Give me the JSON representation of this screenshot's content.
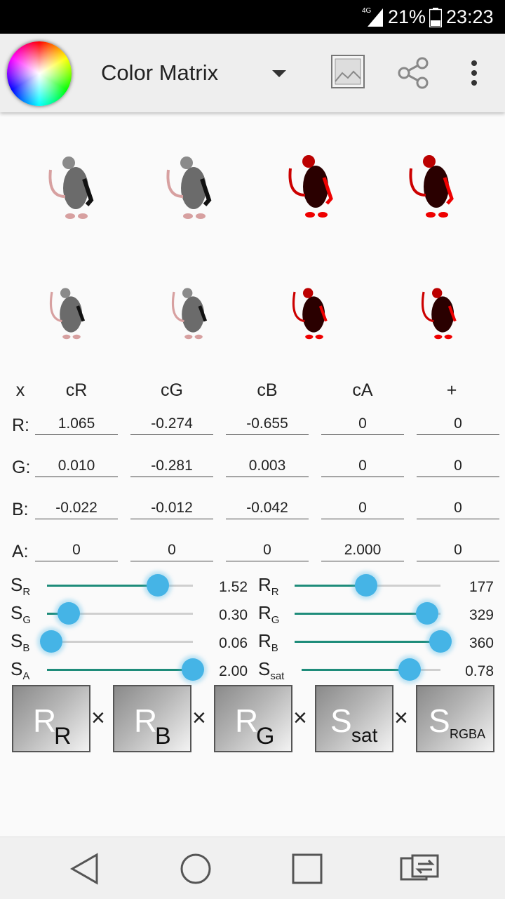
{
  "status_bar": {
    "network": "4G",
    "battery": "21%",
    "time": "23:23"
  },
  "app_bar": {
    "title": "Color Matrix"
  },
  "thumbnails": [
    "rat-gray",
    "rat-gray",
    "rat-red",
    "rat-red",
    "rat-gray",
    "rat-gray",
    "rat-red",
    "rat-red"
  ],
  "matrix": {
    "headers": [
      "x",
      "cR",
      "cG",
      "cB",
      "cA",
      "+"
    ],
    "rows": [
      {
        "label": "R:",
        "values": [
          "1.065",
          "-0.274",
          "-0.655",
          "0",
          "0"
        ]
      },
      {
        "label": "G:",
        "values": [
          "0.010",
          "-0.281",
          "0.003",
          "0",
          "0"
        ]
      },
      {
        "label": "B:",
        "values": [
          "-0.022",
          "-0.012",
          "-0.042",
          "0",
          "0"
        ]
      },
      {
        "label": "A:",
        "values": [
          "0",
          "0",
          "0",
          "2.000",
          "0"
        ]
      }
    ]
  },
  "sliders": {
    "left": [
      {
        "label": "S",
        "sub": "R",
        "value": "1.52",
        "level": 0.76
      },
      {
        "label": "S",
        "sub": "G",
        "value": "0.30",
        "level": 0.15
      },
      {
        "label": "S",
        "sub": "B",
        "value": "0.06",
        "level": 0.03
      },
      {
        "label": "S",
        "sub": "A",
        "value": "2.00",
        "level": 1.0
      }
    ],
    "right": [
      {
        "label": "R",
        "sub": "R",
        "value": "177",
        "level": 0.49
      },
      {
        "label": "R",
        "sub": "G",
        "value": "329",
        "level": 0.91
      },
      {
        "label": "R",
        "sub": "B",
        "value": "360",
        "level": 1.0
      },
      {
        "label": "S",
        "sub": "sat",
        "value": "0.78",
        "level": 0.78
      }
    ]
  },
  "product": {
    "operator": "×",
    "matrices": [
      {
        "label": "R",
        "sub": "R"
      },
      {
        "label": "R",
        "sub": "B"
      },
      {
        "label": "R",
        "sub": "G"
      },
      {
        "label": "S",
        "sub": "sat"
      },
      {
        "label": "S",
        "sub": "RGBA"
      }
    ]
  },
  "colors": {
    "accent": "#45b4e6",
    "slider_fill": "#1e8c7a",
    "app_bar": "#eeeeee"
  }
}
